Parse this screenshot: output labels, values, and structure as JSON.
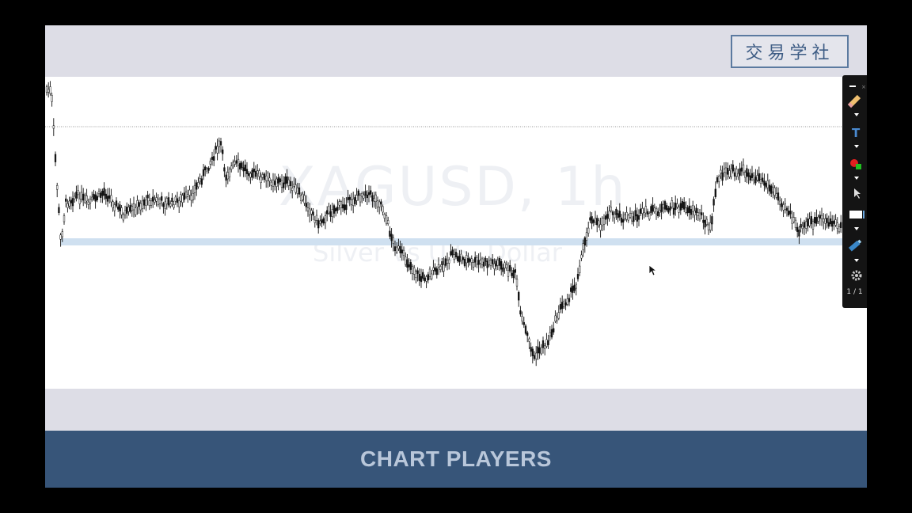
{
  "logo": {
    "text": "交易学社"
  },
  "chart": {
    "symbol": "XAGUSD, 1h",
    "description": "Silver vs U.S. Dollar"
  },
  "footer": {
    "title": "CHART PLAYERS"
  },
  "toolbar": {
    "tools": [
      "minimize-icon",
      "pencil-icon",
      "text-tool-icon",
      "color-icon",
      "pointer-icon",
      "rectangle-icon",
      "highlighter-icon",
      "gear-icon"
    ],
    "page_indicator": "1 / 1"
  },
  "colors": {
    "frame": "#dddde6",
    "footer": "#375579",
    "support_zone": "#cfe0f0",
    "candle": "#111111"
  }
}
